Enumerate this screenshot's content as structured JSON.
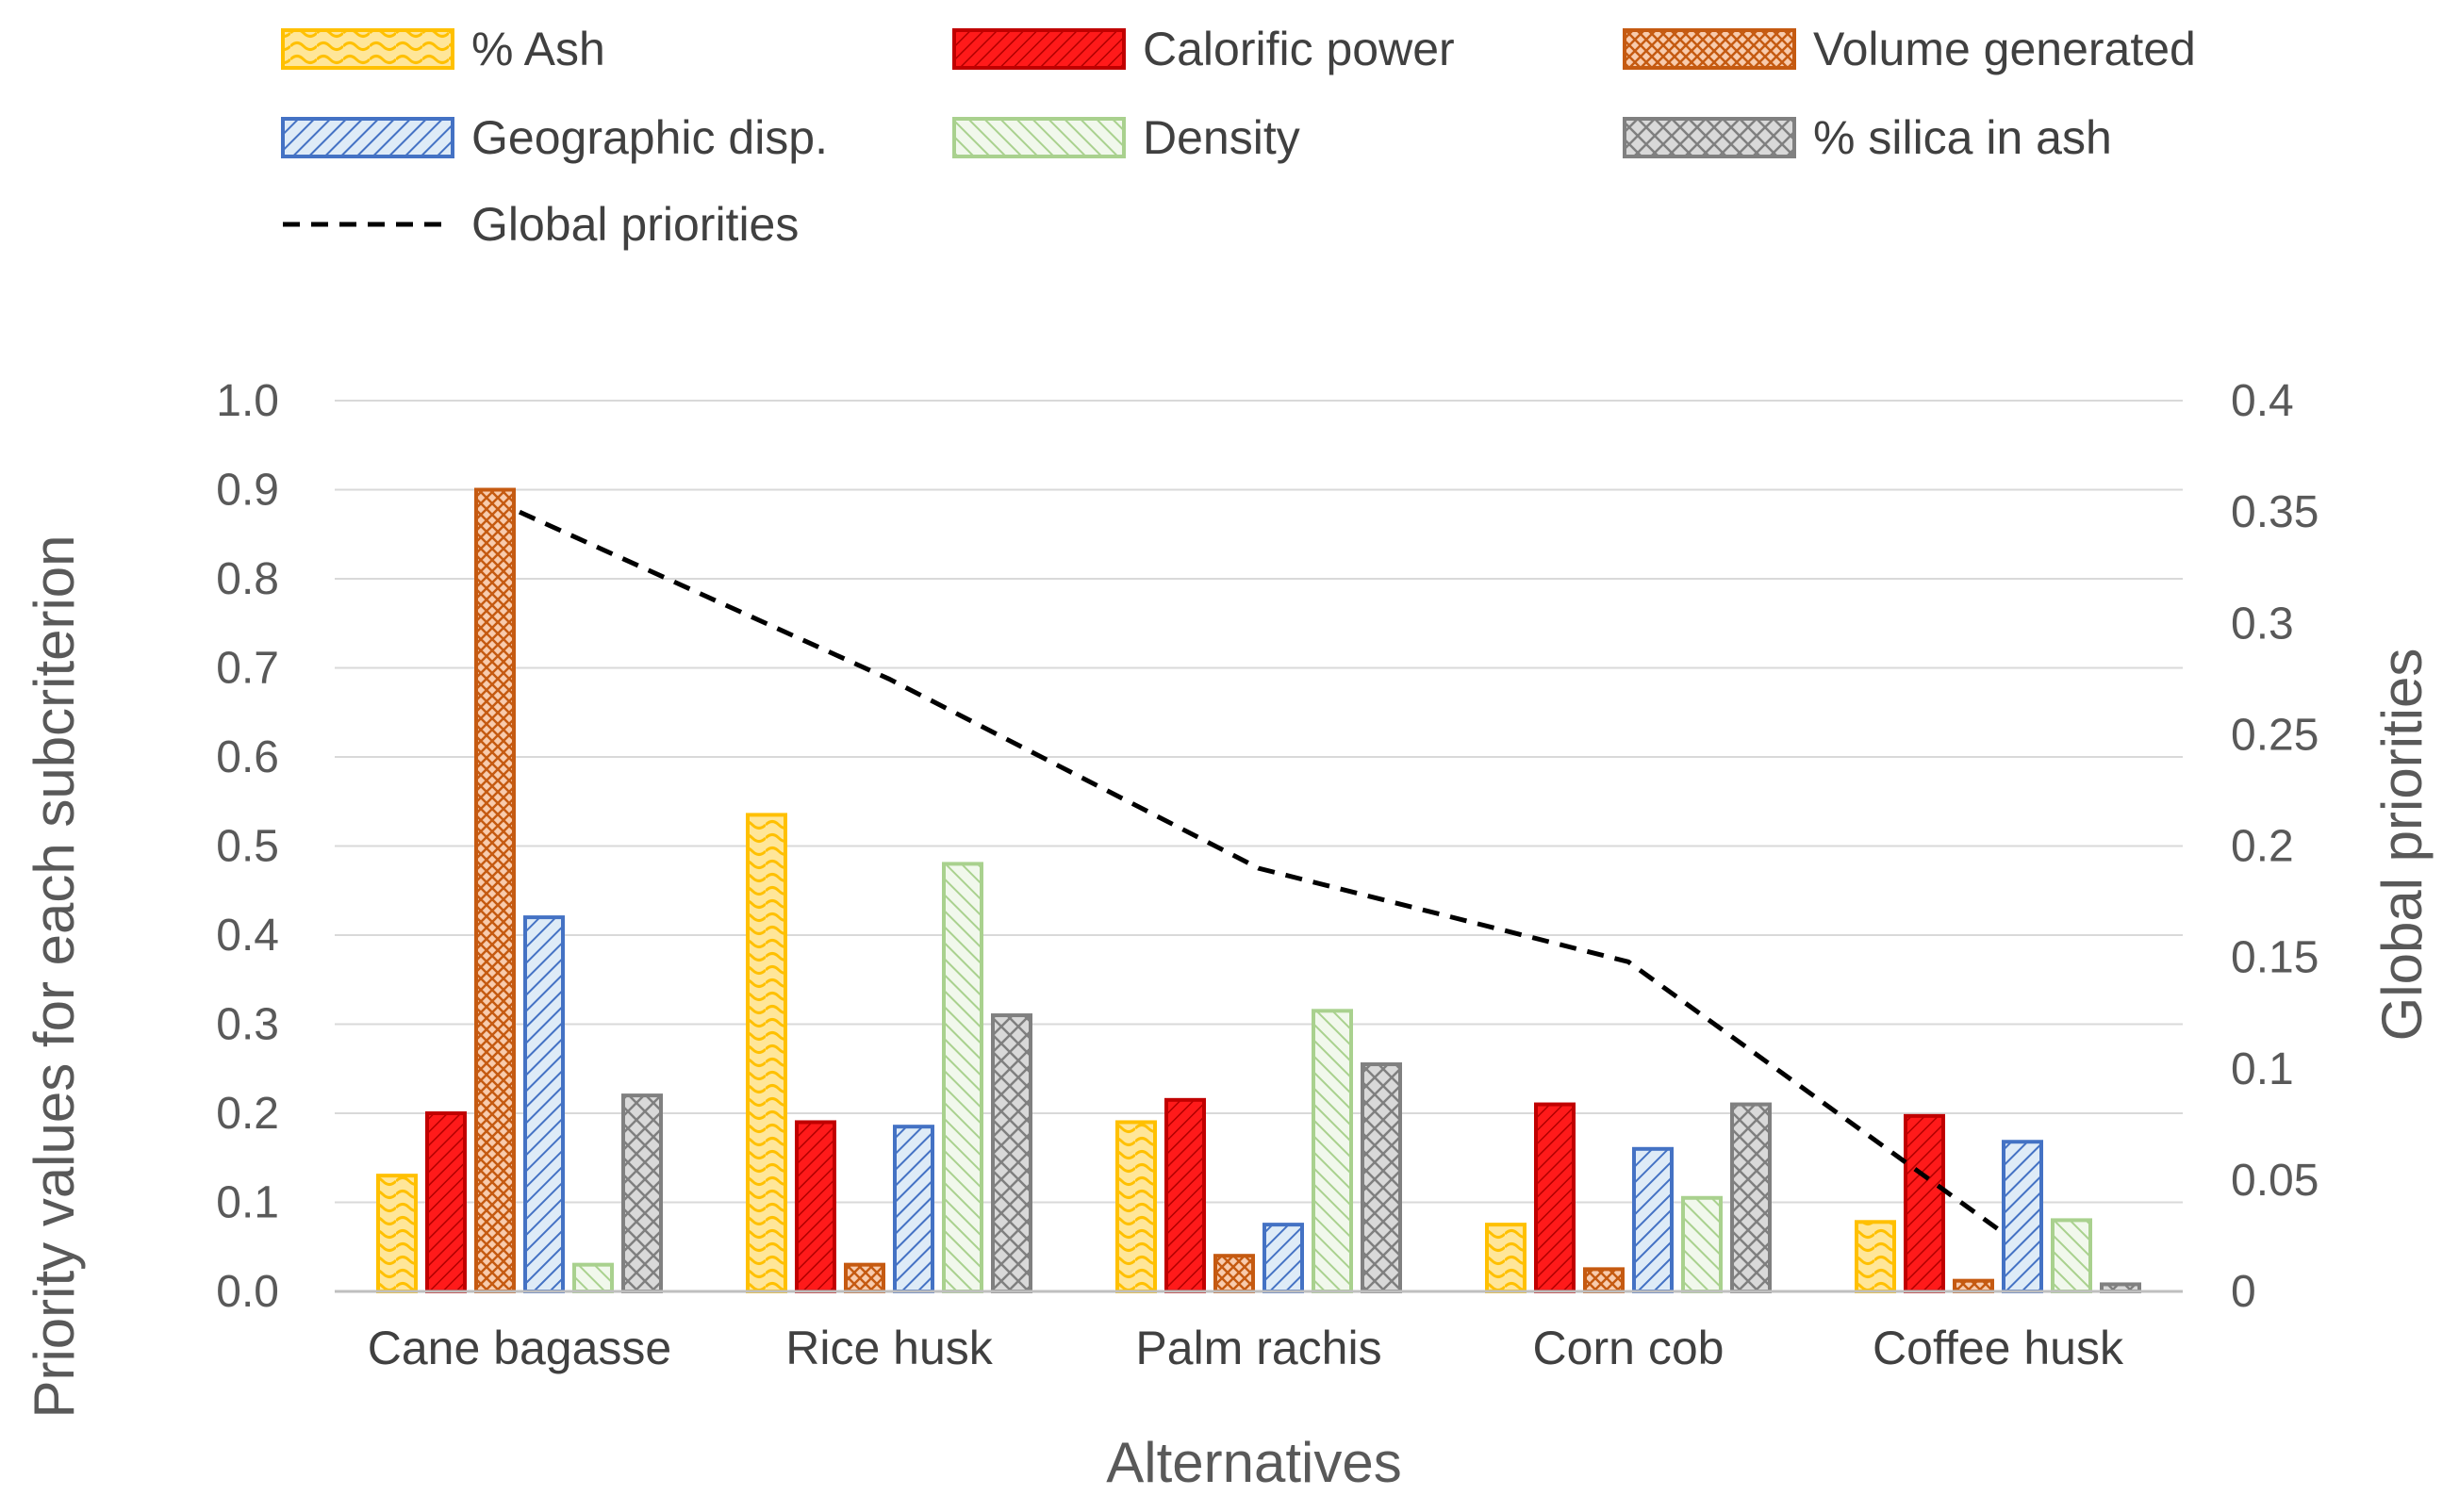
{
  "chart_data": {
    "type": "bar",
    "title": "",
    "xlabel": "Alternatives",
    "ylabel": "Priority values for each subcriterion",
    "y2label": "Global priorities",
    "ylim": [
      0,
      1.0
    ],
    "y2lim": [
      0,
      0.4
    ],
    "yticks": [
      "0.0",
      "0.1",
      "0.2",
      "0.3",
      "0.4",
      "0.5",
      "0.6",
      "0.7",
      "0.8",
      "0.9",
      "1.0"
    ],
    "y2ticks": [
      "0",
      "0.05",
      "0.1",
      "0.15",
      "0.2",
      "0.25",
      "0.3",
      "0.35",
      "0.4"
    ],
    "grid": true,
    "legend_position": "top",
    "categories": [
      "Cane bagasse",
      "Rice husk",
      "Palm rachis",
      "Corn cob",
      "Coffee husk"
    ],
    "series": [
      {
        "name": "% Ash",
        "values": [
          0.13,
          0.535,
          0.19,
          0.075,
          0.078
        ],
        "color": "#FFD966",
        "stroke": "#FFC000",
        "pattern": "wave"
      },
      {
        "name": "Calorific power",
        "values": [
          0.2,
          0.19,
          0.215,
          0.21,
          0.197
        ],
        "color": "#FF0000",
        "stroke": "#C00000",
        "pattern": "diag-dense"
      },
      {
        "name": "Volume generated",
        "values": [
          0.9,
          0.03,
          0.04,
          0.025,
          0.012
        ],
        "color": "#F4B183",
        "stroke": "#C55A11",
        "pattern": "cross-fine"
      },
      {
        "name": "Geographic disp.",
        "values": [
          0.42,
          0.185,
          0.075,
          0.16,
          0.168
        ],
        "color": "#BDD7EE",
        "stroke": "#4472C4",
        "pattern": "diag-wide"
      },
      {
        "name": "Density",
        "values": [
          0.03,
          0.48,
          0.315,
          0.105,
          0.08
        ],
        "color": "#E2F0D9",
        "stroke": "#A9D18E",
        "pattern": "diag-back"
      },
      {
        "name": "% silica in ash",
        "values": [
          0.22,
          0.31,
          0.255,
          0.21,
          0.008
        ],
        "color": "#D9D9D9",
        "stroke": "#808080",
        "pattern": "diamond"
      }
    ],
    "line_series": {
      "name": "Global priorities",
      "axis": "secondary",
      "style": "dashed",
      "color": "#000000",
      "values": [
        0.35,
        0.275,
        0.19,
        0.148,
        0.028
      ]
    }
  }
}
